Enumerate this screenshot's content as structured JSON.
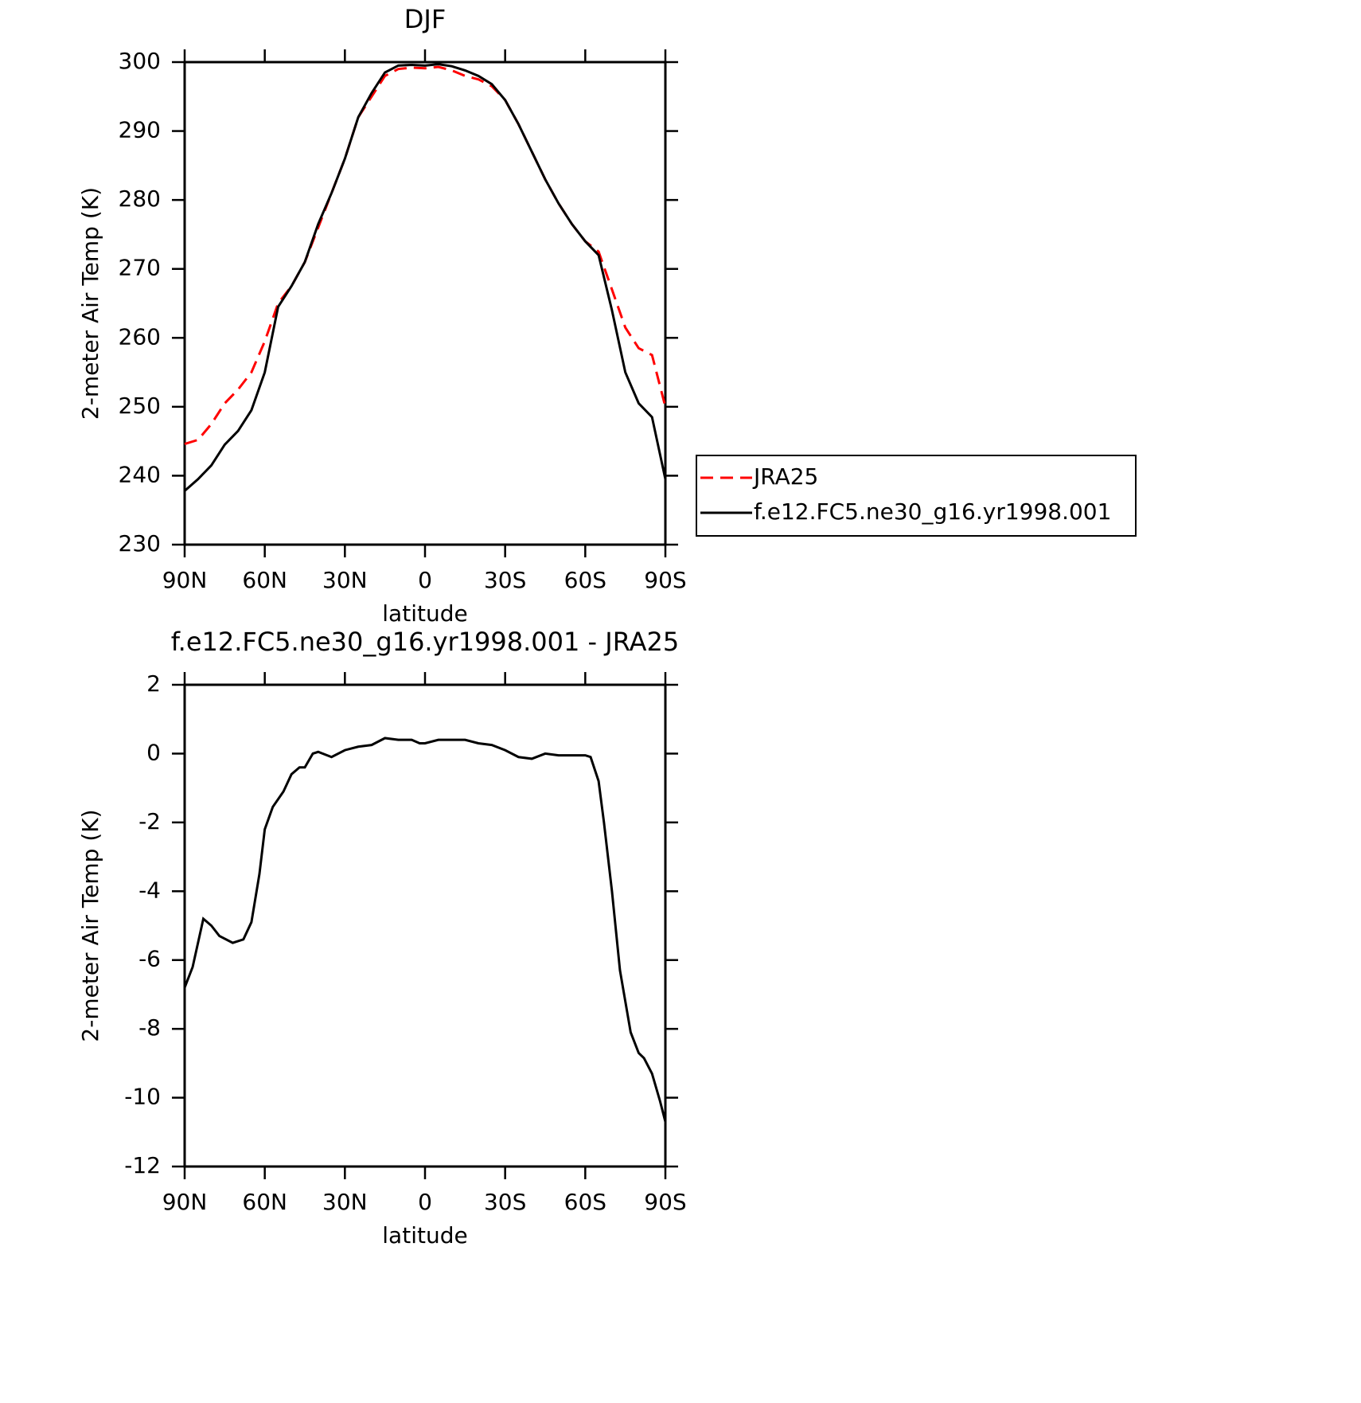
{
  "chart_data": [
    {
      "type": "line",
      "title": "DJF",
      "xlabel": "latitude",
      "ylabel": "2-meter Air Temp (K)",
      "x": [
        90,
        85,
        80,
        75,
        70,
        65,
        60,
        55,
        50,
        45,
        40,
        35,
        30,
        25,
        20,
        15,
        10,
        5,
        0,
        -5,
        -10,
        -15,
        -20,
        -25,
        -30,
        -35,
        -40,
        -45,
        -50,
        -55,
        -60,
        -65,
        -70,
        -75,
        -80,
        -85,
        -90
      ],
      "series": [
        {
          "name": "JRA25",
          "color": "#ff0000",
          "line_style": "dashed",
          "values": [
            244.6,
            245.2,
            247.5,
            250.5,
            252.5,
            255,
            259.5,
            265,
            267.5,
            271,
            276,
            281,
            286,
            292,
            295,
            298,
            299,
            299.2,
            299.1,
            299.3,
            298.8,
            298,
            297.5,
            296.5,
            294.5,
            291,
            287,
            283,
            279.5,
            276.5,
            274,
            272.5,
            267,
            261.5,
            258.5,
            257.5,
            250
          ]
        },
        {
          "name": "f.e12.FC5.ne30_g16.yr1998.001",
          "color": "#000000",
          "line_style": "solid",
          "values": [
            237.8,
            239.5,
            241.5,
            244.5,
            246.5,
            249.5,
            255,
            264.5,
            267.5,
            271,
            276.5,
            281,
            286,
            292,
            295.5,
            298.5,
            299.5,
            299.6,
            299.5,
            299.7,
            299.4,
            298.8,
            298,
            296.8,
            294.5,
            291,
            287,
            283,
            279.5,
            276.5,
            274,
            272,
            264,
            255,
            250.5,
            248.5,
            239.5
          ]
        }
      ],
      "xlim": [
        90,
        -90
      ],
      "xticks": [
        {
          "value": 90,
          "label": "90N"
        },
        {
          "value": 60,
          "label": "60N"
        },
        {
          "value": 30,
          "label": "30N"
        },
        0,
        {
          "value": -30,
          "label": "30S"
        },
        {
          "value": -60,
          "label": "60S"
        },
        {
          "value": -90,
          "label": "90S"
        }
      ],
      "ylim": [
        230,
        300
      ],
      "yticks": [
        230,
        240,
        250,
        260,
        270,
        280,
        290,
        300
      ],
      "legend": "outside-right"
    },
    {
      "type": "line",
      "title": "f.e12.FC5.ne30_g16.yr1998.001 - JRA25",
      "xlabel": "latitude",
      "ylabel": "2-meter Air Temp (K)",
      "x": [
        90,
        87,
        83,
        80,
        77,
        72,
        68,
        65,
        62,
        60,
        57,
        53,
        50,
        47,
        45,
        42,
        40,
        35,
        30,
        25,
        20,
        15,
        10,
        5,
        2,
        0,
        -5,
        -10,
        -15,
        -20,
        -25,
        -30,
        -35,
        -40,
        -45,
        -50,
        -55,
        -60,
        -62,
        -65,
        -67,
        -70,
        -73,
        -77,
        -80,
        -82,
        -85,
        -88,
        -90
      ],
      "series": [
        {
          "color": "#000000",
          "line_style": "solid",
          "values": [
            -6.8,
            -6.2,
            -4.8,
            -5.0,
            -5.3,
            -5.5,
            -5.4,
            -4.9,
            -3.5,
            -2.2,
            -1.55,
            -1.1,
            -0.6,
            -0.4,
            -0.4,
            0.0,
            0.05,
            -0.1,
            0.1,
            0.2,
            0.25,
            0.45,
            0.4,
            0.4,
            0.3,
            0.3,
            0.4,
            0.4,
            0.4,
            0.3,
            0.25,
            0.1,
            -0.1,
            -0.15,
            0.0,
            -0.05,
            -0.05,
            -0.05,
            -0.1,
            -0.8,
            -2.0,
            -4.0,
            -6.3,
            -8.1,
            -8.7,
            -8.85,
            -9.3,
            -10.1,
            -10.7
          ]
        }
      ],
      "xlim": [
        90,
        -90
      ],
      "xticks": [
        {
          "value": 90,
          "label": "90N"
        },
        {
          "value": 60,
          "label": "60N"
        },
        {
          "value": 30,
          "label": "30N"
        },
        0,
        {
          "value": -30,
          "label": "30S"
        },
        {
          "value": -60,
          "label": "60S"
        },
        {
          "value": -90,
          "label": "90S"
        }
      ],
      "ylim": [
        -12,
        2
      ],
      "yticks": [
        -12,
        -10,
        -8,
        -6,
        -4,
        -2,
        0,
        2
      ]
    }
  ]
}
